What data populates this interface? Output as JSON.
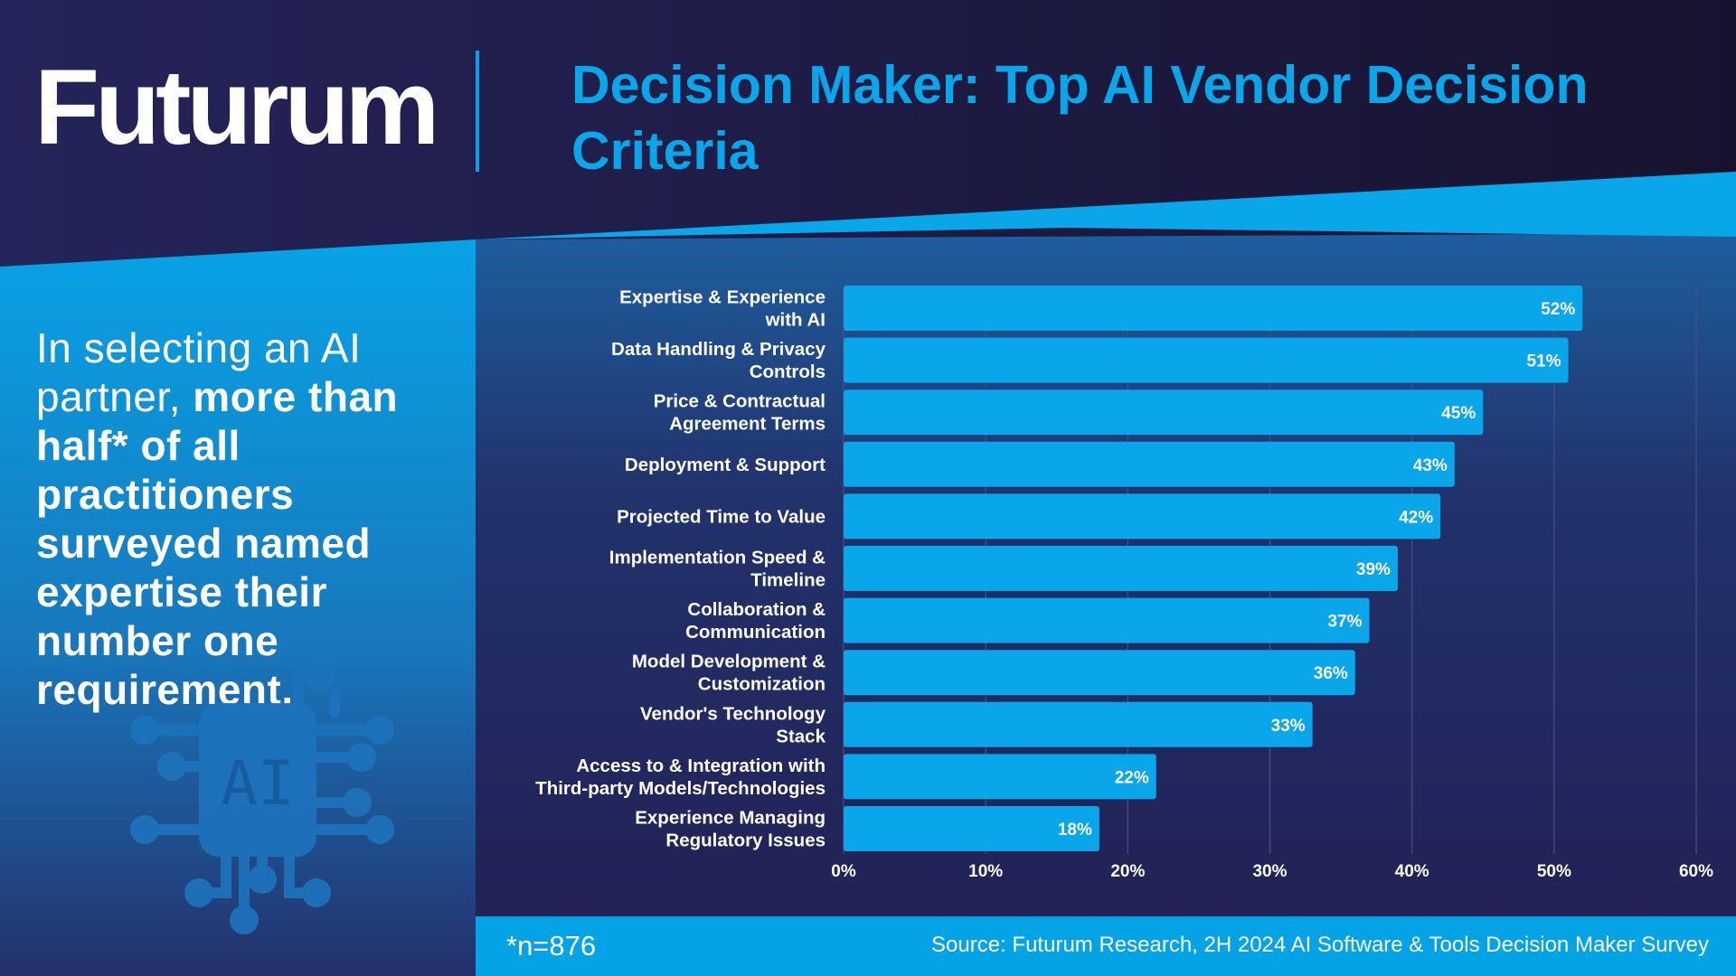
{
  "brand": {
    "logo": "Futurum"
  },
  "title": "Decision Maker: Top AI Vendor Decision Criteria",
  "callout": {
    "lead": "In selecting an AI partner, ",
    "emphasis": "more than half* of all practitioners surveyed named expertise their number one requirement."
  },
  "ai_icon_label": "AI",
  "footnote": "*n=876",
  "source": "Source: Futurum Research, 2H 2024 AI Software & Tools Decision Maker Survey",
  "colors": {
    "bar": "#0aa6ea",
    "title": "#0aa6ea",
    "accent_band": "#04a3e6"
  },
  "chart_data": {
    "type": "bar",
    "orientation": "horizontal",
    "categories": [
      [
        "Expertise & Experience",
        "with AI"
      ],
      [
        "Data Handling & Privacy",
        "Controls"
      ],
      [
        "Price & Contractual",
        "Agreement Terms"
      ],
      [
        "Deployment & Support"
      ],
      [
        "Projected Time to Value"
      ],
      [
        "Implementation Speed &",
        "Timeline"
      ],
      [
        "Collaboration &",
        "Communication"
      ],
      [
        "Model Development &",
        "Customization"
      ],
      [
        "Vendor's Technology",
        "Stack"
      ],
      [
        "Access to & Integration with",
        "Third-party Models/Technologies"
      ],
      [
        "Experience Managing",
        "Regulatory Issues"
      ]
    ],
    "values": [
      52,
      51,
      45,
      43,
      42,
      39,
      37,
      36,
      33,
      22,
      18
    ],
    "value_labels": [
      "52%",
      "51%",
      "45%",
      "43%",
      "42%",
      "39%",
      "37%",
      "36%",
      "33%",
      "22%",
      "18%"
    ],
    "xlim": [
      0,
      60
    ],
    "xticks": [
      "0%",
      "10%",
      "20%",
      "30%",
      "40%",
      "50%",
      "60%"
    ],
    "grid": true,
    "legend": "none"
  }
}
